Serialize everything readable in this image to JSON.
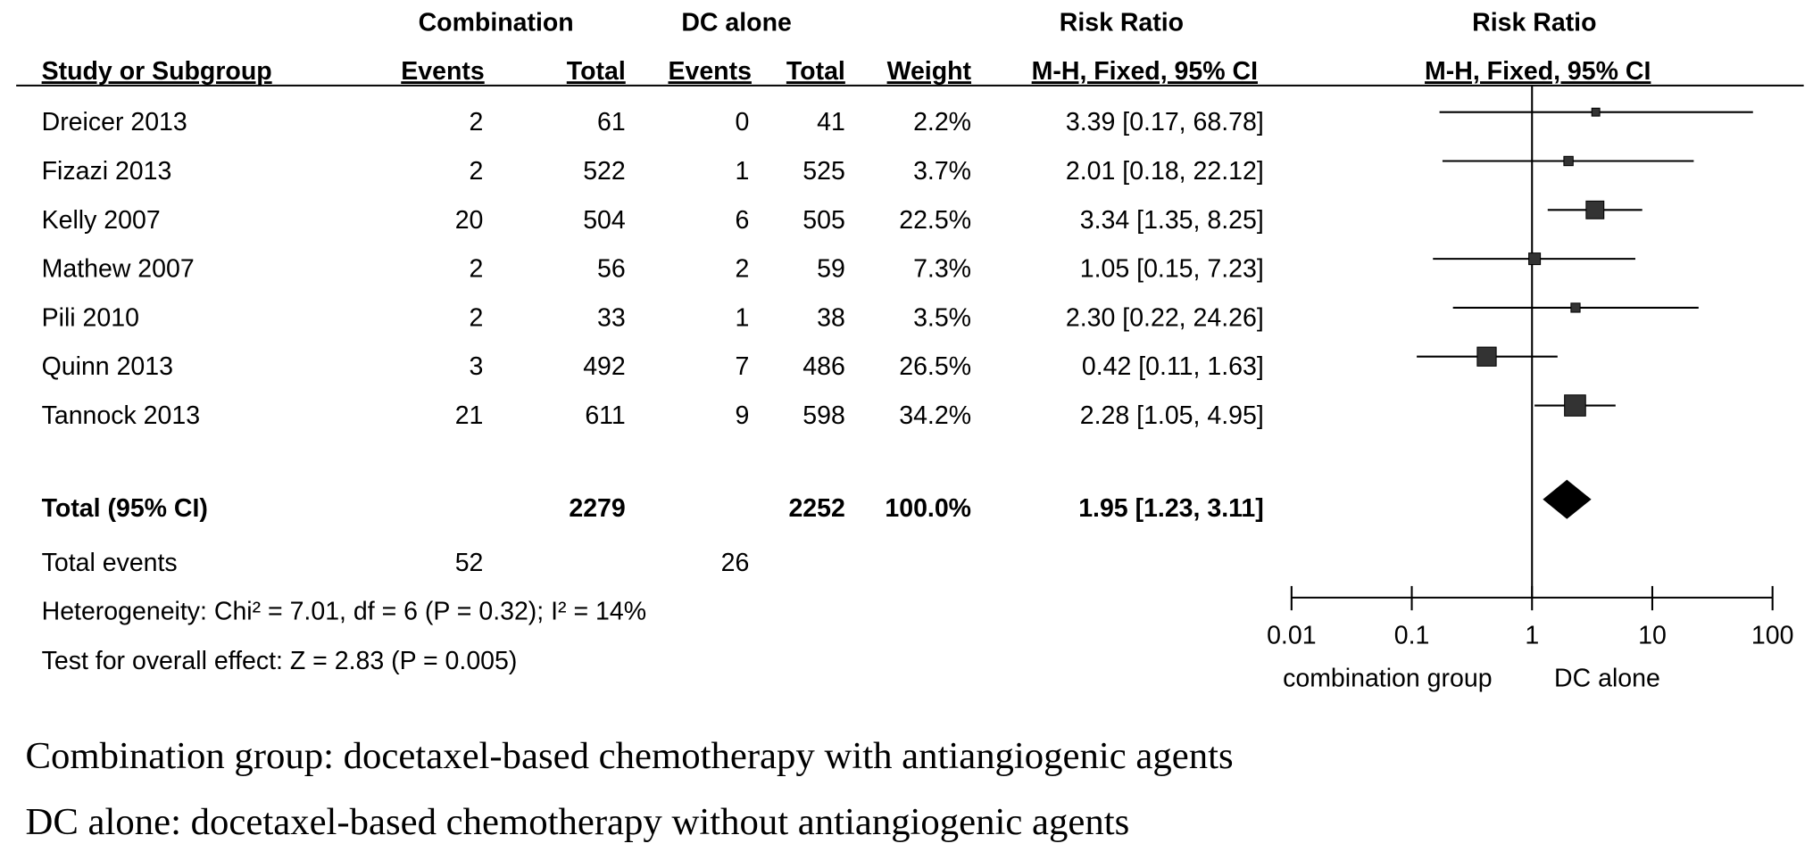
{
  "chart_data": {
    "type": "forest",
    "group_headers": [
      "Combination",
      "DC alone"
    ],
    "columns": [
      "Study or Subgroup",
      "Events",
      "Total",
      "Events",
      "Total",
      "Weight",
      "M-H, Fixed, 95% CI"
    ],
    "table_effect_title": "Risk Ratio",
    "plot_title": "Risk Ratio",
    "plot_subtitle": "M-H, Fixed, 95% CI",
    "categories": [
      "Dreicer 2013",
      "Fizazi 2013",
      "Kelly 2007",
      "Mathew 2007",
      "Pili 2010",
      "Quinn  2013",
      "Tannock 2013"
    ],
    "events_combination": [
      2,
      2,
      20,
      2,
      2,
      3,
      21
    ],
    "total_combination": [
      61,
      522,
      504,
      56,
      33,
      492,
      611
    ],
    "events_dc": [
      0,
      1,
      6,
      2,
      1,
      7,
      9
    ],
    "total_dc": [
      41,
      525,
      505,
      59,
      38,
      486,
      598
    ],
    "weights": [
      2.2,
      3.7,
      22.5,
      7.3,
      3.5,
      26.5,
      34.2
    ],
    "weight_labels": [
      "2.2%",
      "3.7%",
      "22.5%",
      "7.3%",
      "3.5%",
      "26.5%",
      "34.2%"
    ],
    "values": [
      3.39,
      2.01,
      3.34,
      1.05,
      2.3,
      0.42,
      2.28
    ],
    "lower": [
      0.17,
      0.18,
      1.35,
      0.15,
      0.22,
      0.11,
      1.05
    ],
    "upper": [
      68.78,
      22.12,
      8.25,
      7.23,
      24.26,
      1.63,
      4.95
    ],
    "value_labels": [
      "3.39 [0.17, 68.78]",
      "2.01 [0.18, 22.12]",
      "3.34 [1.35, 8.25]",
      "1.05 [0.15, 7.23]",
      "2.30 [0.22, 24.26]",
      "0.42 [0.11, 1.63]",
      "2.28 [1.05, 4.95]"
    ],
    "total": {
      "name": "Total (95% CI)",
      "total_combination": 2279,
      "total_dc": 2252,
      "weight": 100.0,
      "weight_label": "100.0%",
      "value": 1.95,
      "lower": 1.23,
      "upper": 3.11,
      "value_label": "1.95 [1.23, 3.11]"
    },
    "total_events": {
      "label": "Total events",
      "combination": 52,
      "dc": 26
    },
    "heterogeneity": "Heterogeneity: Chi² = 7.01, df = 6 (P = 0.32); I² = 14%",
    "overall_effect": "Test for overall effect: Z = 2.83 (P = 0.005)",
    "log_x": true,
    "xlim": [
      0.01,
      100
    ],
    "xticks": [
      0.01,
      0.1,
      1,
      10,
      100
    ],
    "favours": [
      "combination group",
      "DC alone"
    ],
    "color": "#333333",
    "footnotes": [
      "Combination group: docetaxel-based chemotherapy with  antiangiogenic  agents",
      "DC alone: docetaxel-based chemotherapy without  antiangiogenic  agents"
    ]
  }
}
